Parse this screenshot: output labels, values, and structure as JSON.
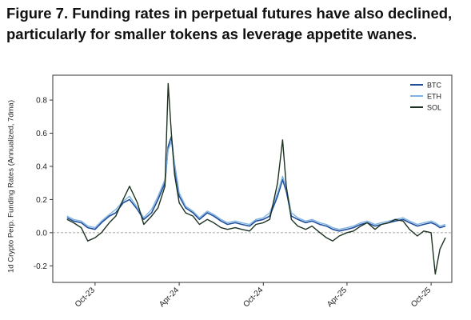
{
  "title": "Figure 7. Funding rates in perpetual futures have also declined, particularly for smaller tokens as leverage appetite wanes.",
  "colors": {
    "BTC": "#1f4e9c",
    "ETH": "#7fb3e3",
    "SOL": "#1c3321",
    "zero_line": "#888888"
  },
  "chart_data": {
    "type": "line",
    "title": "Figure 7. Funding rates in perpetual futures have also declined, particularly for smaller tokens as leverage appetite wanes.",
    "xlabel": "",
    "ylabel": "1d Crypto Perp. Funding Rates (Annualized, 7dma)",
    "x_tick_labels": [
      "Oct-23",
      "Apr-24",
      "Oct-24",
      "Apr-25",
      "Oct-25"
    ],
    "y_tick_labels": [
      "-0.2",
      "0.0",
      "0.2",
      "0.4",
      "0.6",
      "0.8"
    ],
    "ylim": [
      -0.3,
      0.95
    ],
    "x_domain": [
      "2023-07-01",
      "2025-11-15"
    ],
    "grid": false,
    "zero_line": "dashed",
    "legend_position": "top-right",
    "x": [
      "2023-08-01",
      "2023-08-15",
      "2023-09-01",
      "2023-09-15",
      "2023-10-01",
      "2023-10-15",
      "2023-11-01",
      "2023-11-15",
      "2023-12-01",
      "2023-12-15",
      "2024-01-01",
      "2024-01-15",
      "2024-02-01",
      "2024-02-15",
      "2024-03-01",
      "2024-03-08",
      "2024-03-15",
      "2024-03-22",
      "2024-04-01",
      "2024-04-15",
      "2024-05-01",
      "2024-05-15",
      "2024-06-01",
      "2024-06-15",
      "2024-07-01",
      "2024-07-15",
      "2024-08-01",
      "2024-08-15",
      "2024-09-01",
      "2024-09-15",
      "2024-10-01",
      "2024-10-15",
      "2024-11-01",
      "2024-11-12",
      "2024-11-20",
      "2024-12-01",
      "2024-12-15",
      "2025-01-01",
      "2025-01-15",
      "2025-02-01",
      "2025-02-15",
      "2025-03-01",
      "2025-03-15",
      "2025-04-01",
      "2025-04-15",
      "2025-05-01",
      "2025-05-15",
      "2025-06-01",
      "2025-06-15",
      "2025-07-01",
      "2025-07-15",
      "2025-08-01",
      "2025-08-15",
      "2025-09-01",
      "2025-09-15",
      "2025-10-01",
      "2025-10-10",
      "2025-10-20",
      "2025-11-01"
    ],
    "series": [
      {
        "name": "BTC",
        "values": [
          0.09,
          0.07,
          0.06,
          0.03,
          0.02,
          0.06,
          0.1,
          0.12,
          0.18,
          0.2,
          0.14,
          0.08,
          0.12,
          0.2,
          0.3,
          0.52,
          0.58,
          0.4,
          0.22,
          0.15,
          0.12,
          0.08,
          0.12,
          0.1,
          0.07,
          0.05,
          0.06,
          0.05,
          0.04,
          0.07,
          0.08,
          0.1,
          0.22,
          0.32,
          0.25,
          0.1,
          0.08,
          0.06,
          0.07,
          0.05,
          0.04,
          0.02,
          0.01,
          0.02,
          0.03,
          0.05,
          0.06,
          0.04,
          0.05,
          0.06,
          0.07,
          0.08,
          0.06,
          0.04,
          0.05,
          0.06,
          0.05,
          0.03,
          0.04
        ]
      },
      {
        "name": "ETH",
        "values": [
          0.1,
          0.08,
          0.07,
          0.04,
          0.03,
          0.07,
          0.11,
          0.14,
          0.19,
          0.22,
          0.15,
          0.09,
          0.14,
          0.22,
          0.32,
          0.5,
          0.55,
          0.42,
          0.24,
          0.16,
          0.13,
          0.09,
          0.13,
          0.11,
          0.08,
          0.06,
          0.07,
          0.06,
          0.05,
          0.08,
          0.09,
          0.12,
          0.24,
          0.34,
          0.27,
          0.12,
          0.09,
          0.07,
          0.08,
          0.06,
          0.05,
          0.03,
          0.02,
          0.03,
          0.04,
          0.06,
          0.07,
          0.05,
          0.06,
          0.07,
          0.08,
          0.09,
          0.07,
          0.05,
          0.06,
          0.07,
          0.06,
          0.04,
          0.05
        ]
      },
      {
        "name": "SOL",
        "values": [
          0.08,
          0.06,
          0.03,
          -0.05,
          -0.03,
          0.0,
          0.06,
          0.1,
          0.2,
          0.28,
          0.18,
          0.05,
          0.1,
          0.15,
          0.28,
          0.9,
          0.6,
          0.35,
          0.18,
          0.12,
          0.1,
          0.05,
          0.08,
          0.06,
          0.03,
          0.02,
          0.03,
          0.02,
          0.01,
          0.05,
          0.06,
          0.08,
          0.3,
          0.56,
          0.28,
          0.08,
          0.04,
          0.02,
          0.04,
          0.0,
          -0.03,
          -0.05,
          -0.02,
          0.0,
          0.01,
          0.04,
          0.06,
          0.02,
          0.05,
          0.06,
          0.08,
          0.07,
          0.02,
          -0.02,
          0.01,
          0.0,
          -0.25,
          -0.1,
          -0.03
        ]
      }
    ]
  }
}
